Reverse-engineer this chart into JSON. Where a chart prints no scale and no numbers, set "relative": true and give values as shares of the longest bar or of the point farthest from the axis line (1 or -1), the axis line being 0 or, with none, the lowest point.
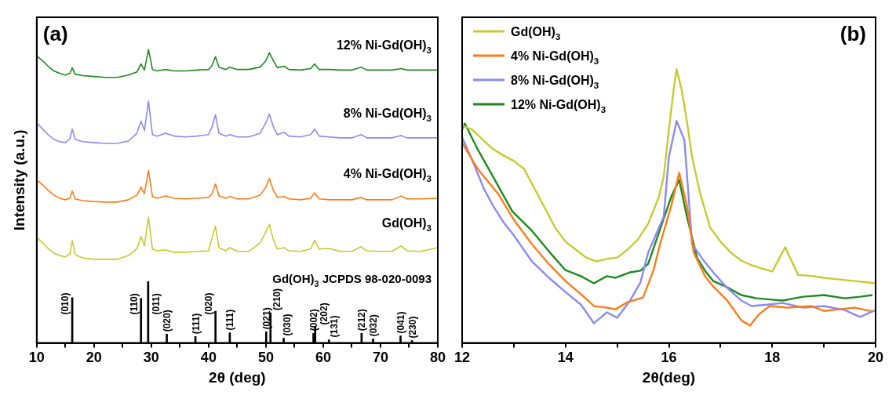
{
  "chart_data": [
    {
      "type": "line",
      "title": "(a)",
      "xlabel": "2θ (deg)",
      "ylabel": "Intensity (a.u.)",
      "relative": true,
      "legend": false,
      "xlim": [
        10,
        80
      ],
      "xticks": [
        10,
        {
          "value": 15,
          "label": null
        },
        20,
        {
          "value": 25,
          "label": null
        },
        30,
        {
          "value": 35,
          "label": null
        },
        40,
        {
          "value": 45,
          "label": null
        },
        50,
        {
          "value": 55,
          "label": null
        },
        60,
        {
          "value": 65,
          "label": null
        },
        70,
        {
          "value": 75,
          "label": null
        },
        80
      ],
      "x": [
        10,
        11,
        12,
        13,
        14,
        15,
        15.8,
        16.2,
        16.7,
        18,
        20,
        22,
        24,
        26,
        27.5,
        28.2,
        28.8,
        29.5,
        30.2,
        31,
        32.5,
        34,
        36,
        38,
        40,
        40.6,
        41.2,
        41.8,
        43,
        43.7,
        45,
        47,
        49,
        50,
        50.6,
        51.3,
        52,
        53.2,
        54,
        56,
        57.8,
        58.5,
        59.3,
        61,
        63,
        65,
        66.6,
        67.6,
        70,
        72,
        73.6,
        74.6,
        77,
        80
      ],
      "series": [
        {
          "name": "Gd(OH)$_{3}$",
          "color": "#c9c930",
          "values": [
            0.36,
            0.341,
            0.322,
            0.306,
            0.298,
            0.293,
            0.304,
            0.35,
            0.301,
            0.29,
            0.285,
            0.285,
            0.285,
            0.298,
            0.322,
            0.363,
            0.331,
            0.428,
            0.32,
            0.314,
            0.317,
            0.309,
            0.309,
            0.312,
            0.314,
            0.358,
            0.398,
            0.325,
            0.314,
            0.325,
            0.312,
            0.312,
            0.341,
            0.379,
            0.404,
            0.352,
            0.32,
            0.325,
            0.314,
            0.312,
            0.32,
            0.35,
            0.32,
            0.322,
            0.312,
            0.312,
            0.328,
            0.314,
            0.312,
            0.312,
            0.331,
            0.314,
            0.312,
            0.325
          ]
        },
        {
          "name": "4% Ni-Gd(OH)$_{3}$",
          "color": "#fa7d1a",
          "values": [
            0.556,
            0.539,
            0.52,
            0.504,
            0.493,
            0.488,
            0.493,
            0.518,
            0.491,
            0.485,
            0.482,
            0.48,
            0.48,
            0.488,
            0.504,
            0.531,
            0.509,
            0.588,
            0.499,
            0.493,
            0.501,
            0.493,
            0.491,
            0.493,
            0.496,
            0.509,
            0.542,
            0.501,
            0.493,
            0.499,
            0.491,
            0.491,
            0.504,
            0.531,
            0.561,
            0.52,
            0.496,
            0.499,
            0.491,
            0.488,
            0.493,
            0.512,
            0.491,
            0.488,
            0.488,
            0.488,
            0.496,
            0.488,
            0.488,
            0.488,
            0.501,
            0.491,
            0.491,
            0.493
          ]
        },
        {
          "name": "8% Ni-Gd(OH)$_{3}$",
          "color": "#8a8af5",
          "values": [
            0.751,
            0.729,
            0.71,
            0.694,
            0.686,
            0.683,
            0.696,
            0.729,
            0.694,
            0.686,
            0.683,
            0.68,
            0.68,
            0.688,
            0.715,
            0.756,
            0.724,
            0.824,
            0.71,
            0.705,
            0.715,
            0.705,
            0.702,
            0.705,
            0.71,
            0.737,
            0.778,
            0.715,
            0.705,
            0.71,
            0.702,
            0.702,
            0.715,
            0.751,
            0.78,
            0.737,
            0.71,
            0.718,
            0.705,
            0.702,
            0.71,
            0.729,
            0.705,
            0.702,
            0.699,
            0.699,
            0.71,
            0.699,
            0.699,
            0.699,
            0.707,
            0.699,
            0.699,
            0.699
          ]
        },
        {
          "name": "12% Ni-Gd(OH)$_{3}$",
          "color": "#1e8a1e",
          "values": [
            0.978,
            0.962,
            0.943,
            0.927,
            0.919,
            0.913,
            0.919,
            0.938,
            0.916,
            0.911,
            0.908,
            0.905,
            0.905,
            0.913,
            0.924,
            0.951,
            0.93,
            1.0,
            0.932,
            0.927,
            0.932,
            0.927,
            0.927,
            0.93,
            0.932,
            0.946,
            0.976,
            0.94,
            0.932,
            0.94,
            0.932,
            0.932,
            0.94,
            0.962,
            0.989,
            0.962,
            0.938,
            0.943,
            0.932,
            0.93,
            0.935,
            0.951,
            0.932,
            0.932,
            0.93,
            0.93,
            0.94,
            0.93,
            0.93,
            0.93,
            0.935,
            0.93,
            0.93,
            0.93
          ]
        },
        {
          "name": "Gd(OH)$_{3}$ JCPDS 98-020-0093",
          "type": "bar",
          "color": "#000000",
          "x": [
            16.2,
            28.2,
            29.45,
            32.7,
            37.7,
            41.2,
            43.7,
            50.05,
            50.8,
            53.1,
            58.3,
            58.6,
            61.0,
            66.7,
            68.7,
            73.5,
            75.5
          ],
          "values": [
            0.154,
            0.152,
            0.209,
            0.03,
            0.022,
            0.108,
            0.035,
            0.038,
            0.103,
            0.016,
            0.033,
            0.054,
            0.011,
            0.033,
            0.014,
            0.024,
            0.008
          ]
        }
      ],
      "annotations": [
        {
          "text": "(010)",
          "x": 16.2,
          "y": 0.154
        },
        {
          "text": "(110)",
          "x": 28.2,
          "y": 0.152
        },
        {
          "text": "(011)",
          "x": 29.45,
          "y": 0.209
        },
        {
          "text": "(020)",
          "x": 32.7,
          "y": 0.03
        },
        {
          "text": "(111)",
          "x": 37.7,
          "y": 0.022
        },
        {
          "text": "(020)",
          "x": 41.2,
          "y": 0.108
        },
        {
          "text": "(111)",
          "x": 43.7,
          "y": 0.035
        },
        {
          "text": "(021)",
          "x": 50.05,
          "y": 0.038
        },
        {
          "text": "(210)",
          "x": 50.8,
          "y": 0.103
        },
        {
          "text": "(030)",
          "x": 53.1,
          "y": 0.016
        },
        {
          "text": "(002)",
          "x": 58.3,
          "y": 0.033
        },
        {
          "text": "(202)",
          "x": 58.6,
          "y": 0.054
        },
        {
          "text": "(131)",
          "x": 61.0,
          "y": 0.011
        },
        {
          "text": "(212)",
          "x": 66.7,
          "y": 0.033
        },
        {
          "text": "(032)",
          "x": 68.7,
          "y": 0.014
        },
        {
          "text": "(041)",
          "x": 73.5,
          "y": 0.024
        },
        {
          "text": "(230)",
          "x": 75.5,
          "y": 0.008
        }
      ]
    },
    {
      "type": "line",
      "title": "(b)",
      "xlabel": "2θ(deg)",
      "relative": true,
      "legend": "top left",
      "xlim": [
        12,
        20
      ],
      "xticks": [
        12,
        {
          "value": 13,
          "label": null
        },
        14,
        {
          "value": 15,
          "label": null
        },
        16,
        {
          "value": 17,
          "label": null
        },
        18,
        {
          "value": 19,
          "label": null
        },
        20
      ],
      "series": [
        {
          "name": "Gd(OH)$_{3}$",
          "color": "#c9c930",
          "x": [
            12.0,
            12.2,
            12.4,
            12.6,
            12.8,
            13.0,
            13.2,
            13.4,
            13.6,
            13.8,
            14.0,
            14.2,
            14.4,
            14.6,
            14.8,
            15.0,
            15.2,
            15.4,
            15.6,
            15.8,
            15.9,
            16.0,
            16.1,
            16.15,
            16.25,
            16.35,
            16.45,
            16.6,
            16.8,
            17.0,
            17.2,
            17.4,
            17.6,
            17.8,
            18.0,
            18.25,
            18.5,
            18.8,
            19.0,
            19.3,
            19.6,
            20.0
          ],
          "values": [
            0.794,
            0.779,
            0.742,
            0.708,
            0.685,
            0.665,
            0.636,
            0.564,
            0.493,
            0.421,
            0.37,
            0.341,
            0.312,
            0.298,
            0.307,
            0.312,
            0.341,
            0.378,
            0.436,
            0.53,
            0.607,
            0.779,
            0.937,
            1.0,
            0.923,
            0.808,
            0.679,
            0.55,
            0.421,
            0.37,
            0.33,
            0.301,
            0.284,
            0.272,
            0.261,
            0.35,
            0.249,
            0.244,
            0.238,
            0.232,
            0.226,
            0.218
          ]
        },
        {
          "name": "4% Ni-Gd(OH)$_{3}$",
          "color": "#fa7d1a",
          "x": [
            12.0,
            12.3,
            12.7,
            13.0,
            13.35,
            13.7,
            14.0,
            14.3,
            14.55,
            14.8,
            14.97,
            15.2,
            15.5,
            15.7,
            15.83,
            16.05,
            16.2,
            16.35,
            16.48,
            16.7,
            16.86,
            17.13,
            17.4,
            17.57,
            17.75,
            17.95,
            18.3,
            18.75,
            19.0,
            19.3,
            19.6,
            19.94
          ],
          "values": [
            0.731,
            0.636,
            0.544,
            0.45,
            0.361,
            0.284,
            0.226,
            0.178,
            0.135,
            0.129,
            0.123,
            0.149,
            0.166,
            0.264,
            0.361,
            0.504,
            0.622,
            0.501,
            0.33,
            0.244,
            0.206,
            0.155,
            0.083,
            0.063,
            0.106,
            0.135,
            0.129,
            0.135,
            0.117,
            0.123,
            0.129,
            0.115
          ]
        },
        {
          "name": "8% Ni-Gd(OH)$_{3}$",
          "color": "#8a8af5",
          "x": [
            12.0,
            12.2,
            12.42,
            12.6,
            12.8,
            13.0,
            13.35,
            13.7,
            14.0,
            14.3,
            14.55,
            14.8,
            15.0,
            15.25,
            15.45,
            15.6,
            15.9,
            16.0,
            16.15,
            16.3,
            16.45,
            16.65,
            16.86,
            17.1,
            17.4,
            17.6,
            17.9,
            18.2,
            18.6,
            19.0,
            19.4,
            19.7,
            20.0
          ],
          "values": [
            0.751,
            0.665,
            0.564,
            0.501,
            0.441,
            0.393,
            0.298,
            0.235,
            0.186,
            0.14,
            0.072,
            0.112,
            0.092,
            0.155,
            0.221,
            0.33,
            0.461,
            0.679,
            0.811,
            0.742,
            0.361,
            0.307,
            0.258,
            0.206,
            0.155,
            0.135,
            0.14,
            0.146,
            0.129,
            0.135,
            0.12,
            0.095,
            0.12
          ]
        },
        {
          "name": "12% Ni-Gd(OH)$_{3}$",
          "color": "#1e8a1e",
          "x": [
            12.0,
            12.05,
            12.3,
            12.6,
            12.97,
            13.35,
            13.7,
            14.0,
            14.3,
            14.55,
            14.8,
            14.97,
            15.25,
            15.45,
            15.6,
            16.05,
            16.2,
            16.35,
            16.55,
            16.7,
            16.86,
            17.1,
            17.4,
            17.7,
            18.0,
            18.2,
            18.6,
            19.0,
            19.4,
            19.7,
            19.94
          ],
          "values": [
            0.779,
            0.802,
            0.708,
            0.607,
            0.481,
            0.41,
            0.33,
            0.266,
            0.244,
            0.218,
            0.244,
            0.238,
            0.258,
            0.264,
            0.289,
            0.536,
            0.596,
            0.461,
            0.309,
            0.264,
            0.226,
            0.206,
            0.175,
            0.163,
            0.158,
            0.155,
            0.169,
            0.175,
            0.163,
            0.169,
            0.175
          ]
        }
      ]
    }
  ]
}
